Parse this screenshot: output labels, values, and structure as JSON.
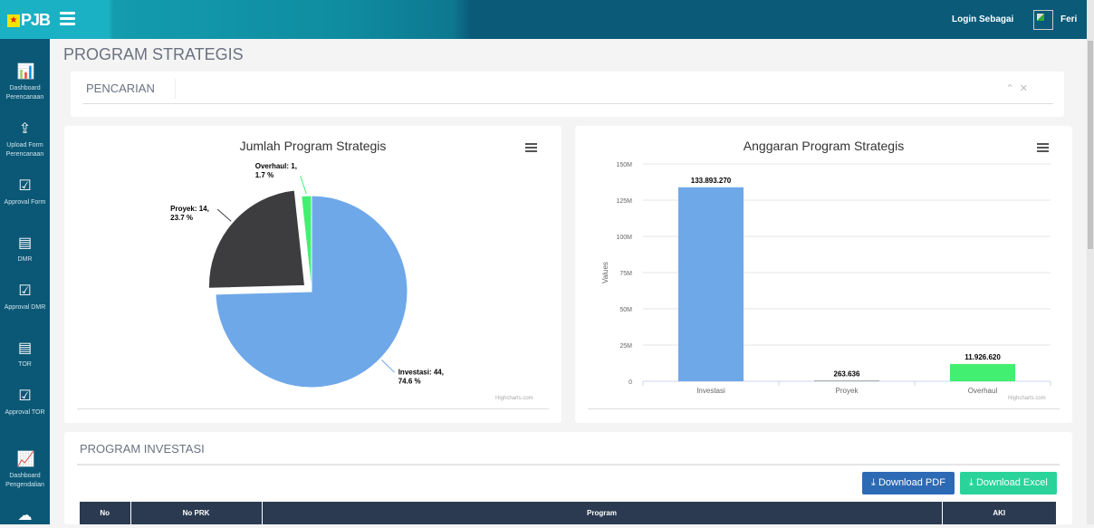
{
  "header": {
    "logo": "PJB",
    "login_label": "Login Sebagai",
    "user": "Feri"
  },
  "sidebar": {
    "items": [
      {
        "label": "Dashboard Perencanaan",
        "icon": "bar-chart-icon"
      },
      {
        "label": "Upload Form Perencanaan",
        "icon": "upload-icon"
      },
      {
        "label": "Approval Form",
        "icon": "checkbox-icon"
      },
      {
        "label": "DMR",
        "icon": "document-icon"
      },
      {
        "label": "Approval DMR",
        "icon": "checkbox-icon"
      },
      {
        "label": "TOR",
        "icon": "document-icon"
      },
      {
        "label": "Approval TOR",
        "icon": "checkbox-icon"
      },
      {
        "label": "Dashboard Pengendalian",
        "icon": "line-chart-icon"
      },
      {
        "label": "",
        "icon": "cloud-upload-icon"
      }
    ]
  },
  "page_title": "PROGRAM STRATEGIS",
  "search_panel": {
    "title": "PENCARIAN"
  },
  "chart_data": [
    {
      "type": "pie",
      "title": "Jumlah Program Strategis",
      "credit": "Highcharts.com",
      "slices": [
        {
          "name": "Investasi",
          "value": 44,
          "percent": 74.6,
          "color": "#6fa8e8",
          "label_line1": "Investasi: 44,",
          "label_line2": "74.6 %"
        },
        {
          "name": "Proyek",
          "value": 14,
          "percent": 23.7,
          "color": "#3d3d40",
          "sliced": true,
          "label_line1": "Proyek: 14,",
          "label_line2": "23.7 %"
        },
        {
          "name": "Overhaul",
          "value": 1,
          "percent": 1.7,
          "color": "#43ef70",
          "label_line1": "Overhaul: 1,",
          "label_line2": "1.7 %"
        }
      ]
    },
    {
      "type": "bar",
      "title": "Anggaran Program Strategis",
      "credit": "Highcharts.com",
      "ylabel": "Values",
      "categories": [
        "Investasi",
        "Proyek",
        "Overhaul"
      ],
      "values": [
        133893270,
        263636,
        11926620
      ],
      "data_labels": [
        "133.893.270",
        "263.636",
        "11.926.620"
      ],
      "colors": [
        "#6fa8e8",
        "#3d3d40",
        "#43ef70"
      ],
      "ylim": [
        0,
        150000000
      ],
      "yticks": [
        {
          "v": 0,
          "label": "0"
        },
        {
          "v": 25000000,
          "label": "25M"
        },
        {
          "v": 50000000,
          "label": "50M"
        },
        {
          "v": 75000000,
          "label": "75M"
        },
        {
          "v": 100000000,
          "label": "100M"
        },
        {
          "v": 125000000,
          "label": "125M"
        },
        {
          "v": 150000000,
          "label": "150M"
        }
      ],
      "grid": true
    }
  ],
  "investasi": {
    "title": "PROGRAM INVESTASI",
    "download_pdf": "Download PDF",
    "download_excel": "Download Excel",
    "columns": [
      "No",
      "No PRK",
      "Program",
      "AKI"
    ]
  }
}
